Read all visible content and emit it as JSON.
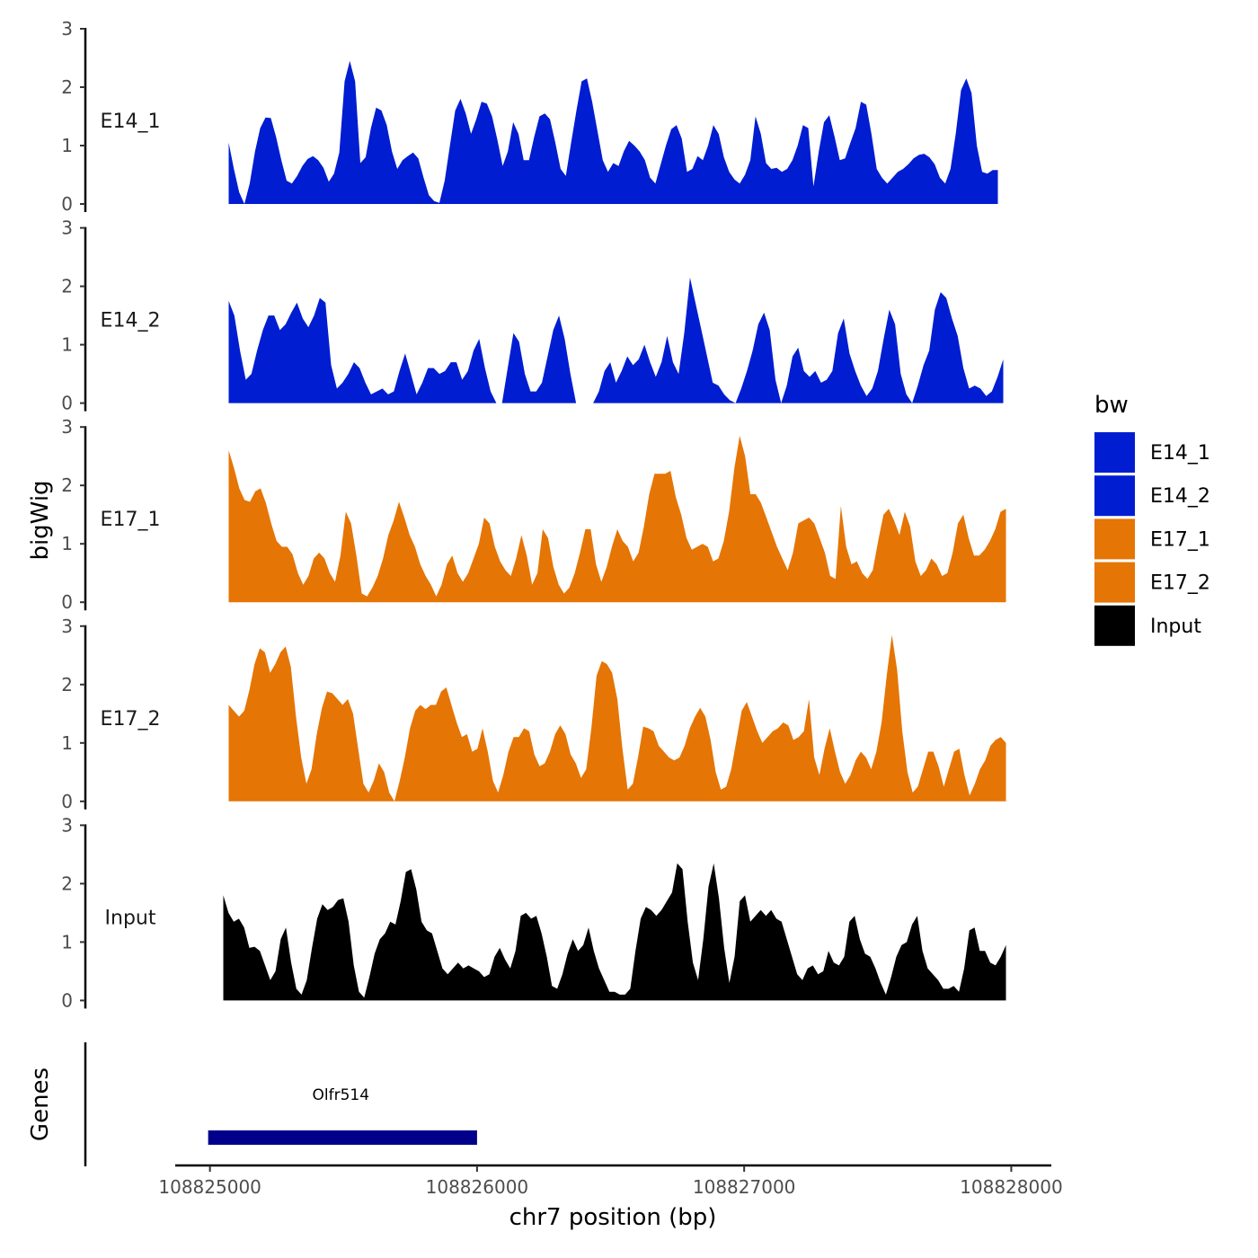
{
  "chart_data": {
    "type": "area",
    "title": "",
    "xlabel": "chr7 position (bp)",
    "ylabel": "bigWig",
    "genes_label": "Genes",
    "xlim": [
      108824870,
      108828150
    ],
    "ylim": [
      0,
      3
    ],
    "yticks": [
      0,
      1,
      2,
      3
    ],
    "xticks": [
      {
        "value": 108825000,
        "label": "108825000"
      },
      {
        "value": 108826000,
        "label": "108826000"
      },
      {
        "value": 108827000,
        "label": "108827000"
      },
      {
        "value": 108828000,
        "label": "108828000"
      }
    ],
    "legend": {
      "title": "bw",
      "entries": [
        {
          "label": "E14_1",
          "color": "#001dd1"
        },
        {
          "label": "E14_2",
          "color": "#001dd1"
        },
        {
          "label": "E17_1",
          "color": "#e57505"
        },
        {
          "label": "E17_2",
          "color": "#e57505"
        },
        {
          "label": "Input",
          "color": "#000000"
        }
      ]
    },
    "series": [
      {
        "name": "E14_1",
        "color": "#001dd1",
        "x_start": 108825070,
        "x_end": 108827950,
        "values": [
          1.05,
          0.6,
          0.2,
          0.0,
          0.35,
          0.9,
          1.3,
          1.48,
          1.47,
          1.15,
          0.75,
          0.4,
          0.35,
          0.48,
          0.65,
          0.77,
          0.82,
          0.75,
          0.62,
          0.38,
          0.52,
          0.88,
          2.1,
          2.45,
          2.1,
          0.7,
          0.8,
          1.3,
          1.65,
          1.6,
          1.35,
          0.9,
          0.6,
          0.75,
          0.82,
          0.88,
          0.78,
          0.45,
          0.15,
          0.05,
          0.02,
          0.4,
          1.0,
          1.6,
          1.8,
          1.55,
          1.2,
          1.45,
          1.75,
          1.72,
          1.5,
          1.1,
          0.65,
          0.9,
          1.4,
          1.2,
          0.75,
          0.75,
          1.15,
          1.5,
          1.55,
          1.45,
          1.05,
          0.6,
          0.48,
          1.05,
          1.6,
          2.1,
          2.15,
          1.75,
          1.25,
          0.75,
          0.55,
          0.7,
          0.65,
          0.9,
          1.08,
          1.0,
          0.9,
          0.75,
          0.45,
          0.35,
          0.68,
          1.0,
          1.28,
          1.35,
          1.12,
          0.55,
          0.6,
          0.82,
          0.75,
          1.0,
          1.35,
          1.2,
          0.8,
          0.55,
          0.42,
          0.35,
          0.5,
          0.75,
          1.5,
          1.2,
          0.7,
          0.6,
          0.62,
          0.55,
          0.6,
          0.75,
          1.0,
          1.35,
          1.3,
          0.3,
          0.9,
          1.4,
          1.52,
          1.15,
          0.75,
          0.78,
          1.05,
          1.3,
          1.75,
          1.7,
          1.2,
          0.6,
          0.45,
          0.35,
          0.45,
          0.55,
          0.6,
          0.68,
          0.78,
          0.84,
          0.86,
          0.8,
          0.68,
          0.45,
          0.35,
          0.6,
          1.2,
          1.95,
          2.15,
          1.9,
          1.0,
          0.55,
          0.52,
          0.58,
          0.58
        ]
      },
      {
        "name": "E14_2",
        "color": "#001dd1",
        "x_start": 108825070,
        "x_end": 108827970,
        "values": [
          1.75,
          1.5,
          0.9,
          0.4,
          0.5,
          0.9,
          1.25,
          1.5,
          1.5,
          1.25,
          1.35,
          1.55,
          1.72,
          1.45,
          1.3,
          1.5,
          1.8,
          1.72,
          0.65,
          0.25,
          0.35,
          0.5,
          0.7,
          0.6,
          0.35,
          0.15,
          0.2,
          0.25,
          0.15,
          0.2,
          0.55,
          0.85,
          0.5,
          0.15,
          0.35,
          0.6,
          0.6,
          0.5,
          0.55,
          0.7,
          0.7,
          0.4,
          0.55,
          0.9,
          1.1,
          0.6,
          0.2,
          0.0,
          0.0,
          0.6,
          1.2,
          1.05,
          0.5,
          0.2,
          0.2,
          0.35,
          0.8,
          1.25,
          1.5,
          1.1,
          0.5,
          0.0,
          0.0,
          0.0,
          0.0,
          0.2,
          0.55,
          0.7,
          0.35,
          0.55,
          0.8,
          0.65,
          0.75,
          1.0,
          0.7,
          0.45,
          0.7,
          1.15,
          0.7,
          0.5,
          1.2,
          2.15,
          1.7,
          1.25,
          0.8,
          0.35,
          0.3,
          0.15,
          0.05,
          0.0,
          0.25,
          0.55,
          0.9,
          1.35,
          1.55,
          1.25,
          0.4,
          0.0,
          0.3,
          0.8,
          0.95,
          0.55,
          0.45,
          0.55,
          0.35,
          0.4,
          0.55,
          1.2,
          1.45,
          0.85,
          0.55,
          0.3,
          0.12,
          0.25,
          0.55,
          1.1,
          1.6,
          1.35,
          0.5,
          0.15,
          0.0,
          0.3,
          0.65,
          0.9,
          1.6,
          1.9,
          1.8,
          1.45,
          1.15,
          0.6,
          0.25,
          0.3,
          0.25,
          0.12,
          0.2,
          0.45,
          0.75
        ]
      },
      {
        "name": "E17_1",
        "color": "#e57505",
        "x_start": 108825070,
        "x_end": 108827980,
        "values": [
          2.6,
          2.3,
          1.95,
          1.75,
          1.72,
          1.9,
          1.95,
          1.7,
          1.35,
          1.05,
          0.95,
          0.95,
          0.82,
          0.5,
          0.3,
          0.45,
          0.75,
          0.85,
          0.75,
          0.5,
          0.35,
          0.8,
          1.55,
          1.35,
          0.8,
          0.15,
          0.1,
          0.25,
          0.45,
          0.75,
          1.15,
          1.4,
          1.72,
          1.45,
          1.15,
          0.95,
          0.65,
          0.45,
          0.3,
          0.1,
          0.3,
          0.65,
          0.8,
          0.5,
          0.35,
          0.5,
          0.75,
          1.0,
          1.45,
          1.35,
          0.95,
          0.7,
          0.55,
          0.45,
          0.75,
          1.15,
          0.8,
          0.3,
          0.5,
          1.25,
          1.1,
          0.6,
          0.3,
          0.15,
          0.25,
          0.5,
          0.85,
          1.25,
          1.25,
          0.65,
          0.35,
          0.6,
          0.95,
          1.25,
          1.05,
          0.95,
          0.7,
          0.85,
          1.3,
          1.85,
          2.2,
          2.2,
          2.2,
          2.25,
          1.8,
          1.5,
          1.1,
          0.9,
          0.95,
          1.0,
          0.95,
          0.7,
          0.75,
          1.05,
          1.55,
          2.3,
          2.85,
          2.5,
          1.85,
          1.85,
          1.7,
          1.45,
          1.2,
          0.95,
          0.75,
          0.55,
          0.85,
          1.35,
          1.4,
          1.45,
          1.35,
          1.1,
          0.85,
          0.45,
          0.4,
          1.65,
          0.95,
          0.65,
          0.7,
          0.5,
          0.4,
          0.55,
          1.05,
          1.5,
          1.6,
          1.4,
          1.15,
          1.55,
          1.3,
          0.7,
          0.45,
          0.55,
          0.75,
          0.65,
          0.45,
          0.5,
          0.85,
          1.35,
          1.5,
          1.1,
          0.8,
          0.8,
          0.9,
          1.05,
          1.25,
          1.55,
          1.6
        ]
      },
      {
        "name": "E17_2",
        "color": "#e57505",
        "x_start": 108825070,
        "x_end": 108827980,
        "values": [
          1.65,
          1.55,
          1.45,
          1.55,
          1.9,
          2.35,
          2.62,
          2.55,
          2.2,
          2.35,
          2.55,
          2.65,
          2.3,
          1.45,
          0.75,
          0.3,
          0.55,
          1.15,
          1.6,
          1.88,
          1.85,
          1.75,
          1.65,
          1.75,
          1.5,
          0.9,
          0.3,
          0.15,
          0.35,
          0.65,
          0.5,
          0.15,
          0.0,
          0.35,
          0.75,
          1.25,
          1.55,
          1.65,
          1.58,
          1.65,
          1.65,
          1.88,
          1.95,
          1.65,
          1.35,
          1.1,
          1.15,
          0.85,
          0.9,
          1.25,
          0.85,
          0.35,
          0.15,
          0.45,
          0.85,
          1.1,
          1.1,
          1.25,
          1.2,
          0.8,
          0.6,
          0.65,
          0.85,
          1.15,
          1.3,
          1.15,
          0.8,
          0.65,
          0.4,
          0.55,
          1.25,
          2.15,
          2.4,
          2.35,
          2.2,
          1.75,
          0.9,
          0.2,
          0.3,
          0.75,
          1.28,
          1.25,
          1.2,
          0.95,
          0.85,
          0.75,
          0.7,
          0.75,
          0.95,
          1.25,
          1.45,
          1.6,
          1.45,
          1.05,
          0.5,
          0.2,
          0.25,
          0.55,
          1.05,
          1.55,
          1.7,
          1.45,
          1.2,
          1.0,
          1.1,
          1.2,
          1.25,
          1.35,
          1.3,
          1.05,
          1.1,
          1.2,
          1.75,
          0.75,
          0.45,
          0.9,
          1.25,
          0.85,
          0.5,
          0.3,
          0.45,
          0.7,
          0.85,
          0.75,
          0.55,
          0.85,
          1.35,
          2.15,
          2.85,
          2.25,
          1.2,
          0.5,
          0.15,
          0.25,
          0.55,
          0.85,
          0.85,
          0.6,
          0.25,
          0.55,
          0.85,
          0.9,
          0.45,
          0.1,
          0.3,
          0.55,
          0.7,
          0.95,
          1.05,
          1.1,
          1.0
        ]
      },
      {
        "name": "Input",
        "color": "#000000",
        "x_start": 108825050,
        "x_end": 108827980,
        "values": [
          1.8,
          1.5,
          1.35,
          1.4,
          1.25,
          0.9,
          0.92,
          0.85,
          0.6,
          0.35,
          0.5,
          1.05,
          1.25,
          0.65,
          0.2,
          0.1,
          0.35,
          0.9,
          1.4,
          1.65,
          1.55,
          1.6,
          1.72,
          1.75,
          1.35,
          0.6,
          0.15,
          0.05,
          0.4,
          0.8,
          1.05,
          1.15,
          1.35,
          1.3,
          1.7,
          2.2,
          2.25,
          1.9,
          1.35,
          1.2,
          1.15,
          0.85,
          0.55,
          0.45,
          0.55,
          0.65,
          0.55,
          0.6,
          0.55,
          0.5,
          0.4,
          0.45,
          0.75,
          0.9,
          0.7,
          0.55,
          0.85,
          1.45,
          1.5,
          1.4,
          1.45,
          1.15,
          0.75,
          0.25,
          0.2,
          0.45,
          0.8,
          1.05,
          0.85,
          0.95,
          1.25,
          0.85,
          0.55,
          0.35,
          0.15,
          0.15,
          0.1,
          0.1,
          0.2,
          0.85,
          1.4,
          1.6,
          1.55,
          1.45,
          1.55,
          1.7,
          1.85,
          2.35,
          2.25,
          1.35,
          0.65,
          0.35,
          1.05,
          1.95,
          2.35,
          1.75,
          0.9,
          0.3,
          0.75,
          1.7,
          1.8,
          1.35,
          1.45,
          1.55,
          1.45,
          1.55,
          1.4,
          1.35,
          1.05,
          0.75,
          0.45,
          0.35,
          0.55,
          0.6,
          0.45,
          0.5,
          0.85,
          0.65,
          0.6,
          0.75,
          1.35,
          1.45,
          1.05,
          0.8,
          0.75,
          0.55,
          0.3,
          0.1,
          0.4,
          0.75,
          0.95,
          1.0,
          1.3,
          1.45,
          0.85,
          0.55,
          0.45,
          0.35,
          0.2,
          0.2,
          0.25,
          0.15,
          0.55,
          1.2,
          1.25,
          0.85,
          0.85,
          0.65,
          0.6,
          0.75,
          0.95
        ]
      }
    ],
    "genes": [
      {
        "name": "Olfr514",
        "start": 108825000,
        "end": 108826000
      }
    ]
  }
}
